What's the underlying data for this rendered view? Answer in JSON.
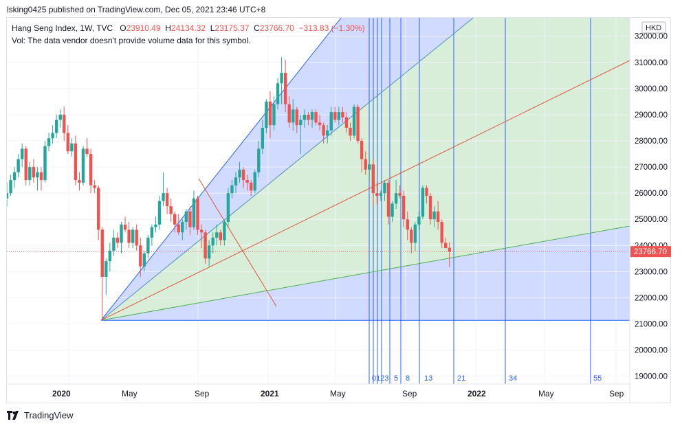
{
  "header": {
    "published_line": "lsking0425 published on TradingView.com, Dec 05, 2021 23:46 UTC+8"
  },
  "legend": {
    "symbol": "Hang Seng Index, 1W, TVC",
    "open_label": "O",
    "open": "23910.49",
    "high_label": "H",
    "high": "24134.32",
    "low_label": "L",
    "low": "23175.37",
    "close_label": "C",
    "close": "23766.70",
    "change": "−313.83 (−1.30%)",
    "volume_note": "Vol: The data vendor doesn't provide volume data for this symbol."
  },
  "footer": {
    "brand": "TradingView"
  },
  "colors": {
    "up": "#26a69a",
    "down": "#ef5350",
    "fib_line": "#2962ff",
    "fan_blue_fill": "#d1dbff",
    "fan_green_fill": "#d8eed8",
    "fan_green_line": "#4caf50",
    "fan_red_line": "#e0533a"
  },
  "chart_data": {
    "type": "candlestick",
    "title": "Hang Seng Index, 1W, TVC",
    "currency": "HKD",
    "last_price": "23766.70",
    "ylim": [
      18300,
      32400
    ],
    "y_ticks": [
      "32000.00",
      "31000.00",
      "30000.00",
      "29000.00",
      "28000.00",
      "27000.00",
      "26000.00",
      "25000.00",
      "24000.00",
      "23000.00",
      "22000.00",
      "21000.00",
      "20000.00",
      "19000.00"
    ],
    "x_ticks": [
      "2020",
      "May",
      "Sep",
      "2021",
      "May",
      "Sep",
      "2022",
      "May",
      "Sep"
    ],
    "fib_time_zone_labels": [
      "0",
      "1",
      "2",
      "3",
      "5",
      "8",
      "13",
      "21",
      "34",
      "55"
    ],
    "gann_fan_origin": {
      "date": "2020-03-19",
      "price": 21139
    },
    "base_price": 21139,
    "candles_ohlc": [
      [
        25800,
        26400,
        25500,
        26000
      ],
      [
        26000,
        26700,
        25900,
        26500
      ],
      [
        26500,
        27000,
        26200,
        26800
      ],
      [
        26800,
        27500,
        26600,
        27300
      ],
      [
        27300,
        27900,
        27000,
        27700
      ],
      [
        27700,
        27800,
        26300,
        26500
      ],
      [
        26500,
        27200,
        26300,
        27000
      ],
      [
        27000,
        27300,
        26400,
        26600
      ],
      [
        26600,
        27000,
        26100,
        26800
      ],
      [
        26800,
        27000,
        26100,
        26500
      ],
      [
        26500,
        28000,
        26400,
        27800
      ],
      [
        27800,
        28300,
        27600,
        28100
      ],
      [
        28100,
        28600,
        27900,
        28300
      ],
      [
        28300,
        29000,
        28100,
        28800
      ],
      [
        28800,
        29200,
        28500,
        29000
      ],
      [
        29000,
        29300,
        28000,
        28300
      ],
      [
        28300,
        28600,
        27500,
        27600
      ],
      [
        27600,
        28100,
        27400,
        27900
      ],
      [
        27900,
        28200,
        26300,
        26500
      ],
      [
        26500,
        26800,
        26100,
        26400
      ],
      [
        26400,
        27800,
        26300,
        27700
      ],
      [
        27700,
        28100,
        27400,
        27500
      ],
      [
        27500,
        27700,
        26000,
        26300
      ],
      [
        26300,
        26500,
        26000,
        26200
      ],
      [
        26200,
        26300,
        24200,
        24600
      ],
      [
        24600,
        24700,
        21139,
        22800
      ],
      [
        22800,
        23500,
        22100,
        23400
      ],
      [
        23400,
        24100,
        23000,
        23800
      ],
      [
        23800,
        24600,
        23600,
        24300
      ],
      [
        24300,
        24500,
        23900,
        24100
      ],
      [
        24100,
        24900,
        23700,
        24800
      ],
      [
        24800,
        25100,
        24500,
        24600
      ],
      [
        24600,
        24900,
        23900,
        24100
      ],
      [
        24100,
        24700,
        23900,
        24600
      ],
      [
        24600,
        24800,
        23800,
        24000
      ],
      [
        24000,
        24300,
        22800,
        23200
      ],
      [
        23200,
        23800,
        23000,
        23700
      ],
      [
        23700,
        24400,
        23500,
        24300
      ],
      [
        24300,
        24800,
        24000,
        24700
      ],
      [
        24700,
        25100,
        24500,
        24800
      ],
      [
        24800,
        25900,
        24600,
        25700
      ],
      [
        25700,
        26800,
        25500,
        26000
      ],
      [
        26000,
        26200,
        25200,
        25500
      ],
      [
        25500,
        25800,
        24900,
        25200
      ],
      [
        25200,
        25300,
        24500,
        24800
      ],
      [
        24800,
        25200,
        24400,
        24500
      ],
      [
        24500,
        25000,
        24200,
        24900
      ],
      [
        24900,
        25400,
        24600,
        25300
      ],
      [
        25300,
        25500,
        24400,
        24700
      ],
      [
        24700,
        26100,
        24600,
        25800
      ],
      [
        25800,
        25900,
        24400,
        24600
      ],
      [
        24600,
        24800,
        23900,
        24500
      ],
      [
        24500,
        24600,
        23300,
        23500
      ],
      [
        23500,
        24200,
        23200,
        24000
      ],
      [
        24000,
        24500,
        23700,
        24300
      ],
      [
        24300,
        24800,
        24000,
        24500
      ],
      [
        24500,
        24600,
        24000,
        24200
      ],
      [
        24200,
        25000,
        24000,
        24900
      ],
      [
        24900,
        26200,
        24700,
        26000
      ],
      [
        26000,
        26500,
        25800,
        26300
      ],
      [
        26300,
        26800,
        26000,
        26600
      ],
      [
        26600,
        27200,
        26400,
        26900
      ],
      [
        26900,
        27000,
        26200,
        26500
      ],
      [
        26500,
        26700,
        26100,
        26400
      ],
      [
        26400,
        26500,
        25900,
        26100
      ],
      [
        26100,
        26900,
        26000,
        26800
      ],
      [
        26800,
        28000,
        26600,
        27700
      ],
      [
        27700,
        28800,
        27500,
        28500
      ],
      [
        28500,
        29600,
        28300,
        29500
      ],
      [
        29500,
        29900,
        28100,
        28600
      ],
      [
        28600,
        29700,
        28400,
        29400
      ],
      [
        29400,
        30400,
        29200,
        30200
      ],
      [
        30200,
        31200,
        29400,
        30600
      ],
      [
        30600,
        31100,
        29100,
        29400
      ],
      [
        29400,
        29700,
        28500,
        28700
      ],
      [
        28700,
        29600,
        28400,
        29200
      ],
      [
        29200,
        29300,
        28300,
        28600
      ],
      [
        28600,
        29000,
        27500,
        28800
      ],
      [
        28800,
        29200,
        28500,
        29000
      ],
      [
        29000,
        29100,
        28600,
        28800
      ],
      [
        28800,
        29200,
        28500,
        29100
      ],
      [
        29100,
        29200,
        28600,
        28700
      ],
      [
        28700,
        29000,
        28400,
        28600
      ],
      [
        28600,
        28700,
        27900,
        28200
      ],
      [
        28200,
        28600,
        27900,
        28400
      ],
      [
        28400,
        29300,
        28200,
        29100
      ],
      [
        29100,
        29300,
        28700,
        28800
      ],
      [
        28800,
        29300,
        28600,
        29100
      ],
      [
        29100,
        29300,
        28700,
        28900
      ],
      [
        28900,
        29100,
        28300,
        28500
      ],
      [
        28500,
        28700,
        28000,
        28200
      ],
      [
        28200,
        29400,
        28100,
        29300
      ],
      [
        29300,
        29400,
        27900,
        28000
      ],
      [
        28000,
        28100,
        26800,
        27300
      ],
      [
        27300,
        27600,
        26700,
        26900
      ],
      [
        26900,
        27400,
        26500,
        27100
      ],
      [
        27100,
        27300,
        25500,
        26000
      ],
      [
        26000,
        26400,
        25600,
        25900
      ],
      [
        25900,
        26100,
        25700,
        26000
      ],
      [
        26000,
        26500,
        25700,
        26400
      ],
      [
        26400,
        26500,
        24800,
        25100
      ],
      [
        25100,
        25700,
        24900,
        25600
      ],
      [
        25600,
        26500,
        25400,
        26000
      ],
      [
        26000,
        26300,
        25800,
        25900
      ],
      [
        25900,
        26100,
        24700,
        25000
      ],
      [
        25000,
        25300,
        24200,
        24600
      ],
      [
        24600,
        24700,
        23700,
        24100
      ],
      [
        24100,
        24900,
        23800,
        24800
      ],
      [
        24800,
        25300,
        24600,
        25100
      ],
      [
        25100,
        26300,
        25000,
        26200
      ],
      [
        26200,
        26300,
        25600,
        25900
      ],
      [
        25900,
        26000,
        24800,
        25000
      ],
      [
        25000,
        25500,
        24700,
        25300
      ],
      [
        25300,
        25700,
        24600,
        24900
      ],
      [
        24900,
        25000,
        23900,
        24100
      ],
      [
        24100,
        24300,
        23900,
        23900
      ],
      [
        23910.49,
        24134.32,
        23175.37,
        23766.7
      ]
    ]
  }
}
